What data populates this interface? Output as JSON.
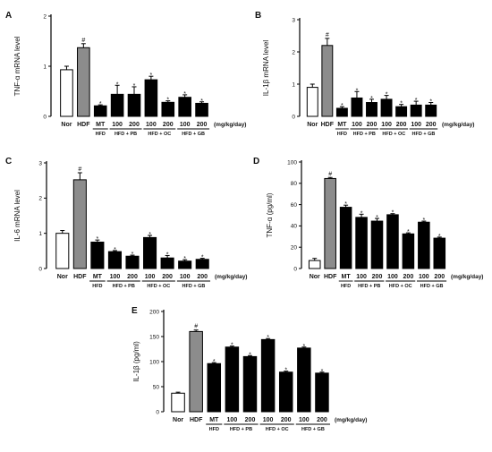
{
  "figure": {
    "unit_label": "(mg/kg/day)",
    "categories": [
      "Nor",
      "HDF",
      "MT",
      "100",
      "200",
      "100",
      "200",
      "100",
      "200"
    ],
    "groups": [
      {
        "label": "HFD",
        "from": 2,
        "to": 2
      },
      {
        "label": "HFD + PB",
        "from": 3,
        "to": 4
      },
      {
        "label": "HFD + OC",
        "from": 5,
        "to": 6
      },
      {
        "label": "HFD + GB",
        "from": 7,
        "to": 8
      }
    ],
    "bar_fills": [
      "#ffffff",
      "#8c8c8c",
      "#000000",
      "#000000",
      "#000000",
      "#000000",
      "#000000",
      "#000000",
      "#000000"
    ],
    "hdf_marker": "#",
    "treat_marker": "*"
  },
  "chart_data": [
    {
      "panel": "A",
      "type": "bar",
      "ylabel": "TNF-α mRNA level",
      "ylim": [
        0,
        2
      ],
      "yticks": [
        0,
        1,
        2
      ],
      "ytick_labels": [
        "0",
        "1",
        "2"
      ],
      "values": [
        0.93,
        1.37,
        0.21,
        0.44,
        0.44,
        0.73,
        0.28,
        0.38,
        0.26
      ],
      "errors": [
        0.07,
        0.08,
        0.02,
        0.18,
        0.15,
        0.07,
        0.03,
        0.05,
        0.03
      ]
    },
    {
      "panel": "B",
      "type": "bar",
      "ylabel": "IL-1β mRNA level",
      "ylim": [
        0,
        3
      ],
      "yticks": [
        0,
        1,
        2,
        3
      ],
      "ytick_labels": [
        "0",
        "1",
        "2",
        "3"
      ],
      "values": [
        0.9,
        2.2,
        0.25,
        0.57,
        0.43,
        0.53,
        0.3,
        0.35,
        0.35
      ],
      "errors": [
        0.1,
        0.22,
        0.05,
        0.2,
        0.1,
        0.12,
        0.07,
        0.12,
        0.08
      ]
    },
    {
      "panel": "C",
      "type": "bar",
      "ylabel": "IL-6 mRNA level",
      "ylim": [
        0,
        3
      ],
      "yticks": [
        0,
        1,
        2,
        3
      ],
      "ytick_labels": [
        "0",
        "1",
        "2",
        "3"
      ],
      "values": [
        1.0,
        2.52,
        0.75,
        0.48,
        0.35,
        0.88,
        0.3,
        0.21,
        0.26
      ],
      "errors": [
        0.08,
        0.2,
        0.06,
        0.03,
        0.03,
        0.06,
        0.07,
        0.04,
        0.03
      ]
    },
    {
      "panel": "D",
      "type": "bar",
      "ylabel": "TNF-α (pg/ml)",
      "ylim": [
        0,
        100
      ],
      "yticks": [
        0,
        20,
        40,
        60,
        80,
        100
      ],
      "ytick_labels": [
        "0",
        "20",
        "40",
        "60",
        "80",
        "100"
      ],
      "values": [
        7.5,
        84.5,
        57.5,
        48,
        44.5,
        50.5,
        32.5,
        43.5,
        28.5
      ],
      "errors": [
        2,
        1,
        2,
        3,
        2.5,
        1,
        1,
        1,
        1
      ]
    },
    {
      "panel": "E",
      "type": "bar",
      "ylabel": "IL-1β (pg/ml)",
      "ylim": [
        0,
        200
      ],
      "yticks": [
        0,
        50,
        100,
        150,
        200
      ],
      "ytick_labels": [
        "0",
        "50",
        "100",
        "150",
        "200"
      ],
      "values": [
        37,
        160,
        96,
        129,
        110,
        144,
        79,
        127,
        77
      ],
      "errors": [
        2,
        3,
        2,
        2,
        2,
        2,
        2,
        2,
        2
      ]
    }
  ]
}
